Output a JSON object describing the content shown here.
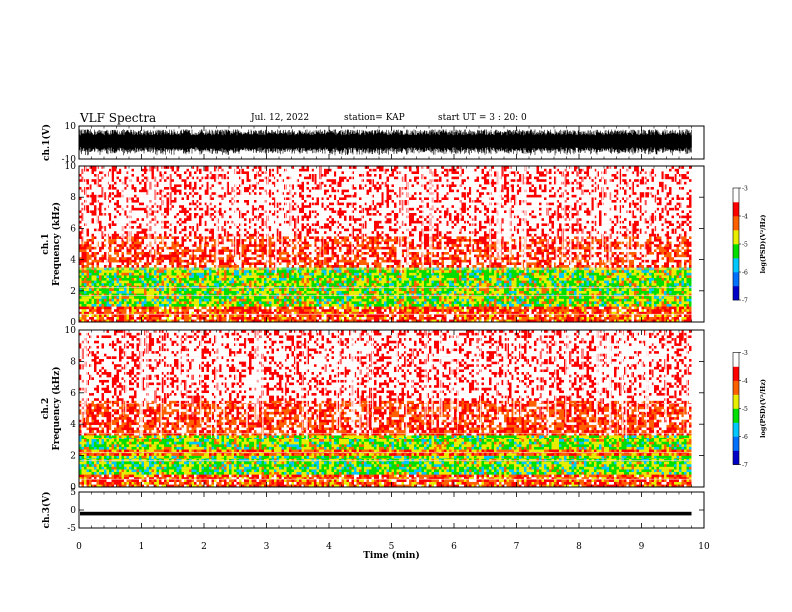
{
  "header": {
    "title": "VLF Spectra",
    "date": "Jul. 12, 2022",
    "station": "station= KAP",
    "start_ut": "start UT =  3 : 20: 0"
  },
  "colors": {
    "background": "#ffffff",
    "trace": "#000000",
    "spectrogram_palette": [
      "#0000c8",
      "#0070ff",
      "#00c8ff",
      "#00e000",
      "#e8ee00",
      "#ff6000",
      "#ff0000",
      "#ffffff"
    ]
  },
  "chart_data": [
    {
      "type": "line",
      "panel": "ch1-waveform",
      "ylabel": "ch.1(V)",
      "ylim": [
        -10,
        10
      ],
      "yticks": [
        "10",
        "-10"
      ],
      "x_unit": "min",
      "xlim": [
        0,
        10
      ],
      "description_of_values": "dense noise-like waveform filling approximately -8 to +8 V over 0–9.8 min",
      "approx_amplitude": 8
    },
    {
      "type": "heatmap",
      "panel": "ch1-spectrogram",
      "ylabel": "ch.1\nFrequency (kHz)",
      "ylim": [
        0,
        10
      ],
      "yticks": [
        "0",
        "2",
        "4",
        "6",
        "8",
        "10"
      ],
      "xlim": [
        0,
        10
      ],
      "data_end_min": 9.8,
      "colorbar": {
        "label": "log(PSD)(V²/Hz)",
        "range": [
          -7,
          -3
        ],
        "ticks": [
          "-3",
          "-4",
          "-5",
          "-6",
          "-7"
        ]
      },
      "bands": [
        {
          "from_khz": 0,
          "to_khz": 1.0,
          "log_psd": -4.0
        },
        {
          "from_khz": 1.0,
          "to_khz": 3.5,
          "log_psd": -5.0
        },
        {
          "from_khz": 3.5,
          "to_khz": 5.5,
          "log_psd": -3.7
        },
        {
          "from_khz": 5.5,
          "to_khz": 10,
          "log_psd": -3.3
        }
      ]
    },
    {
      "type": "heatmap",
      "panel": "ch2-spectrogram",
      "ylabel": "ch.2\nFrequency (kHz)",
      "ylim": [
        0,
        10
      ],
      "yticks": [
        "0",
        "2",
        "4",
        "6",
        "8",
        "10"
      ],
      "xlim": [
        0,
        10
      ],
      "data_end_min": 9.8,
      "colorbar": {
        "label": "log(PSD)(V²/Hz)",
        "range": [
          -7,
          -3
        ],
        "ticks": [
          "-3",
          "-4",
          "-5",
          "-6",
          "-7"
        ]
      },
      "bands": [
        {
          "from_khz": 0,
          "to_khz": 0.8,
          "log_psd": -4.0
        },
        {
          "from_khz": 0.8,
          "to_khz": 2.0,
          "log_psd": -5.1
        },
        {
          "from_khz": 2.0,
          "to_khz": 2.4,
          "log_psd": -4.2
        },
        {
          "from_khz": 2.4,
          "to_khz": 3.3,
          "log_psd": -5.0
        },
        {
          "from_khz": 3.3,
          "to_khz": 5.5,
          "log_psd": -3.8
        },
        {
          "from_khz": 5.5,
          "to_khz": 10,
          "log_psd": -3.3
        }
      ]
    },
    {
      "type": "line",
      "panel": "ch3-waveform",
      "ylabel": "ch.3(V)",
      "ylim": [
        -5,
        5
      ],
      "yticks": [
        "5",
        "0",
        "-5"
      ],
      "xlabel": "Time (min)",
      "xlim": [
        0,
        10
      ],
      "xticks": [
        "0",
        "1",
        "2",
        "3",
        "4",
        "5",
        "6",
        "7",
        "8",
        "9",
        "10"
      ],
      "description_of_values": "thin constant-amplitude band near 0 V from 0 to 9.8 min",
      "approx_amplitude": 0.5
    }
  ]
}
